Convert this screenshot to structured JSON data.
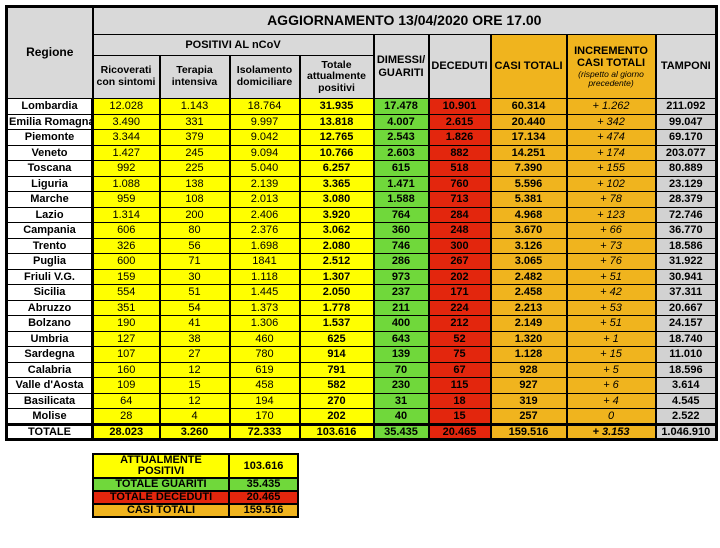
{
  "colors": {
    "yellow": "#FFFF00",
    "green": "#70D83B",
    "red": "#E3260D",
    "amber": "#F0B41E",
    "header_gray": "#D9D9D9",
    "tamponi_gray": "#D2D2D2"
  },
  "header": {
    "banner": "AGGIORNAMENTO 13/04/2020 ORE 17.00",
    "region_col": "Regione",
    "positivi_group": "POSITIVI AL nCoV",
    "subcols": [
      "Ricoverati con sintomi",
      "Terapia intensiva",
      "Isolamento domiciliare",
      "Totale attualmente positivi"
    ],
    "dimessi": "DIMESSI/\nGUARITI",
    "deceduti": "DECEDUTI",
    "casi_totali": "CASI TOTALI",
    "incremento_title": "INCREMENTO\nCASI  TOTALI",
    "incremento_note": "(rispetto al giorno precedente)",
    "tamponi": "TAMPONI"
  },
  "table": {
    "rows": [
      {
        "region": "Lombardia",
        "values": [
          "12.028",
          "1.143",
          "18.764",
          "31.935",
          "17.478",
          "10.901",
          "60.314",
          "+ 1.262",
          "211.092"
        ]
      },
      {
        "region": "Emilia Romagna",
        "values": [
          "3.490",
          "331",
          "9.997",
          "13.818",
          "4.007",
          "2.615",
          "20.440",
          "+ 342",
          "99.047"
        ]
      },
      {
        "region": "Piemonte",
        "values": [
          "3.344",
          "379",
          "9.042",
          "12.765",
          "2.543",
          "1.826",
          "17.134",
          "+ 474",
          "69.170"
        ]
      },
      {
        "region": "Veneto",
        "values": [
          "1.427",
          "245",
          "9.094",
          "10.766",
          "2.603",
          "882",
          "14.251",
          "+ 174",
          "203.077"
        ]
      },
      {
        "region": "Toscana",
        "values": [
          "992",
          "225",
          "5.040",
          "6.257",
          "615",
          "518",
          "7.390",
          "+ 155",
          "80.889"
        ]
      },
      {
        "region": "Liguria",
        "values": [
          "1.088",
          "138",
          "2.139",
          "3.365",
          "1.471",
          "760",
          "5.596",
          "+ 102",
          "23.129"
        ]
      },
      {
        "region": "Marche",
        "values": [
          "959",
          "108",
          "2.013",
          "3.080",
          "1.588",
          "713",
          "5.381",
          "+ 78",
          "28.379"
        ]
      },
      {
        "region": "Lazio",
        "values": [
          "1.314",
          "200",
          "2.406",
          "3.920",
          "764",
          "284",
          "4.968",
          "+ 123",
          "72.746"
        ]
      },
      {
        "region": "Campania",
        "values": [
          "606",
          "80",
          "2.376",
          "3.062",
          "360",
          "248",
          "3.670",
          "+ 66",
          "36.770"
        ]
      },
      {
        "region": "Trento",
        "values": [
          "326",
          "56",
          "1.698",
          "2.080",
          "746",
          "300",
          "3.126",
          "+ 73",
          "18.586"
        ]
      },
      {
        "region": "Puglia",
        "values": [
          "600",
          "71",
          "1841",
          "2.512",
          "286",
          "267",
          "3.065",
          "+ 76",
          "31.922"
        ]
      },
      {
        "region": "Friuli V.G.",
        "values": [
          "159",
          "30",
          "1.118",
          "1.307",
          "973",
          "202",
          "2.482",
          "+ 51",
          "30.941"
        ]
      },
      {
        "region": "Sicilia",
        "values": [
          "554",
          "51",
          "1.445",
          "2.050",
          "237",
          "171",
          "2.458",
          "+ 42",
          "37.311"
        ]
      },
      {
        "region": "Abruzzo",
        "values": [
          "351",
          "54",
          "1.373",
          "1.778",
          "211",
          "224",
          "2.213",
          "+ 53",
          "20.667"
        ]
      },
      {
        "region": "Bolzano",
        "values": [
          "190",
          "41",
          "1.306",
          "1.537",
          "400",
          "212",
          "2.149",
          "+ 51",
          "24.157"
        ]
      },
      {
        "region": "Umbria",
        "values": [
          "127",
          "38",
          "460",
          "625",
          "643",
          "52",
          "1.320",
          "+ 1",
          "18.740"
        ]
      },
      {
        "region": "Sardegna",
        "values": [
          "107",
          "27",
          "780",
          "914",
          "139",
          "75",
          "1.128",
          "+ 15",
          "11.010"
        ]
      },
      {
        "region": "Calabria",
        "values": [
          "160",
          "12",
          "619",
          "791",
          "70",
          "67",
          "928",
          "+ 5",
          "18.596"
        ]
      },
      {
        "region": "Valle d'Aosta",
        "values": [
          "109",
          "15",
          "458",
          "582",
          "230",
          "115",
          "927",
          "+ 6",
          "3.614"
        ]
      },
      {
        "region": "Basilicata",
        "values": [
          "64",
          "12",
          "194",
          "270",
          "31",
          "18",
          "319",
          "+ 4",
          "4.545"
        ]
      },
      {
        "region": "Molise",
        "values": [
          "28",
          "4",
          "170",
          "202",
          "40",
          "15",
          "257",
          "0",
          "2.522"
        ]
      },
      {
        "region": "TOTALE",
        "total": true,
        "values": [
          "28.023",
          "3.260",
          "72.333",
          "103.616",
          "35.435",
          "20.465",
          "159.516",
          "+ 3.153",
          "1.046.910"
        ]
      }
    ]
  },
  "summary": {
    "rows": [
      {
        "label": "ATTUALMENTE POSITIVI",
        "value": "103.616",
        "color": "yellow"
      },
      {
        "label": "TOTALE GUARITI",
        "value": "35.435",
        "color": "green"
      },
      {
        "label": "TOTALE DECEDUTI",
        "value": "20.465",
        "color": "red"
      },
      {
        "label": "CASI TOTALI",
        "value": "159.516",
        "color": "amber"
      }
    ]
  }
}
